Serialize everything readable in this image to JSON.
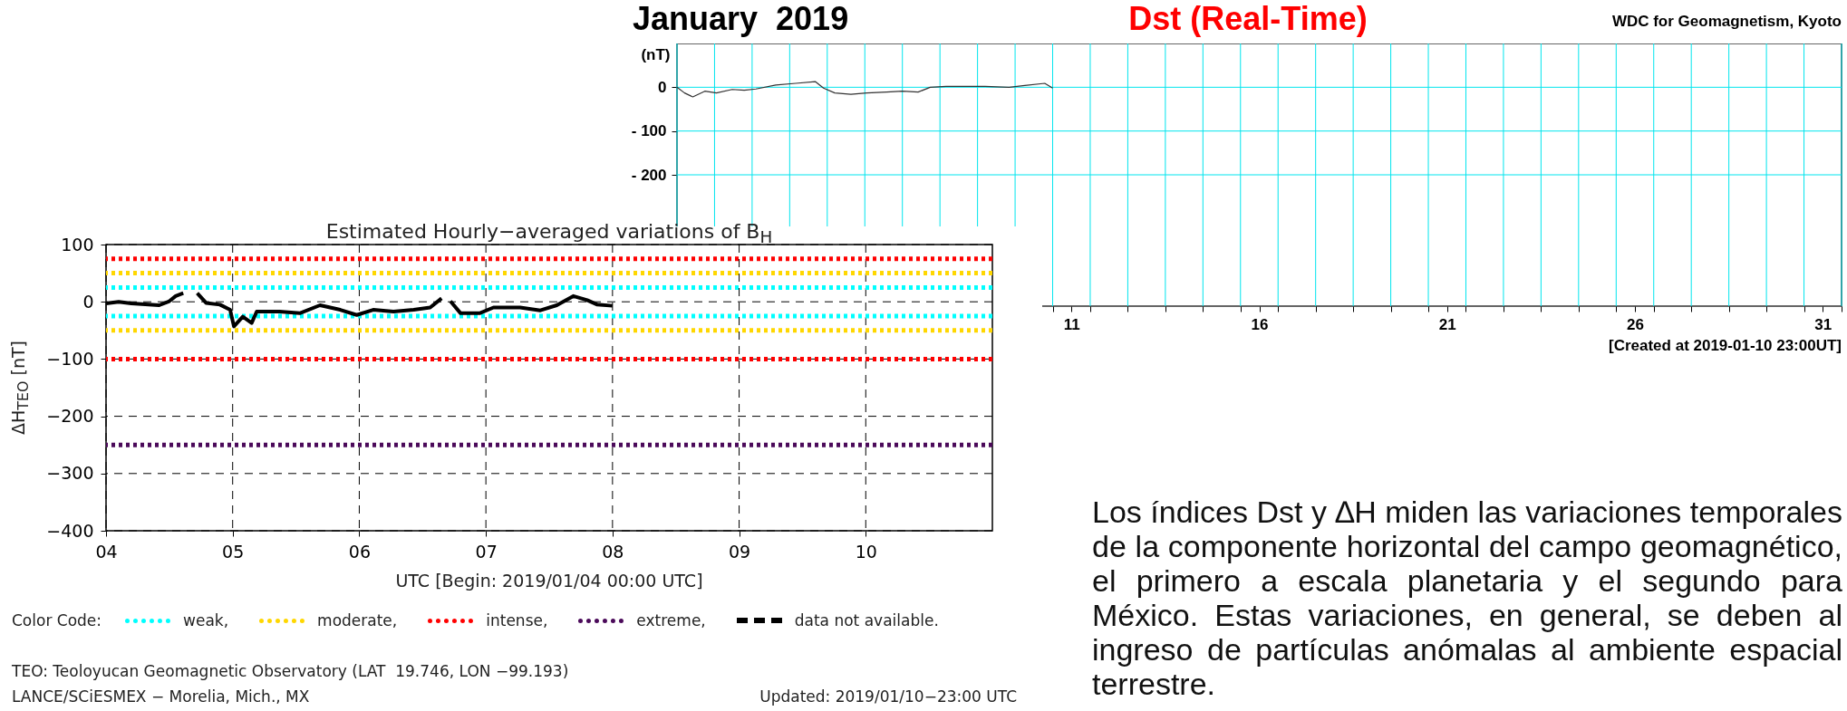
{
  "chart_data": [
    {
      "type": "line",
      "title": "Dst (Real-Time)",
      "subtitle": "January  2019",
      "ylabel": "(nT)",
      "annotations": [
        "WDC for Geomagnetism, Kyoto",
        "[Created at 2019-01-10 23:00UT]"
      ],
      "xlim": [
        1,
        32
      ],
      "xticks": [
        {
          "value": 1,
          "label": null
        },
        {
          "value": 2,
          "label": null
        },
        {
          "value": 3,
          "label": null
        },
        {
          "value": 4,
          "label": null
        },
        {
          "value": 5,
          "label": null
        },
        {
          "value": 6,
          "label": null
        },
        {
          "value": 7,
          "label": null
        },
        {
          "value": 8,
          "label": null
        },
        {
          "value": 9,
          "label": null
        },
        {
          "value": 10,
          "label": null
        },
        {
          "value": 11,
          "label": null
        },
        {
          "value": 12,
          "label": null
        },
        {
          "value": 13,
          "label": null
        },
        {
          "value": 14,
          "label": null
        },
        {
          "value": 15,
          "label": null
        },
        {
          "value": 16,
          "label": null
        },
        {
          "value": 17,
          "label": null
        },
        {
          "value": 18,
          "label": null
        },
        {
          "value": 19,
          "label": null
        },
        {
          "value": 20,
          "label": null
        },
        {
          "value": 21,
          "label": null
        },
        {
          "value": 22,
          "label": null
        },
        {
          "value": 23,
          "label": null
        },
        {
          "value": 24,
          "label": null
        },
        {
          "value": 25,
          "label": null
        },
        {
          "value": 26,
          "label": null
        },
        {
          "value": 27,
          "label": null
        },
        {
          "value": 28,
          "label": null
        },
        {
          "value": 29,
          "label": null
        },
        {
          "value": 30,
          "label": null
        },
        {
          "value": 31,
          "label": null
        },
        {
          "value": 32,
          "label": null
        },
        {
          "value": 11.5,
          "label": "11"
        },
        {
          "value": 16.5,
          "label": "16"
        },
        {
          "value": 21.5,
          "label": "21"
        },
        {
          "value": 26.5,
          "label": "26"
        },
        {
          "value": 31.5,
          "label": "31"
        }
      ],
      "ylim": [
        -500,
        100
      ],
      "yticks": [
        0,
        {
          "value": -100,
          "label": "- 100"
        },
        {
          "value": -200,
          "label": "- 200"
        }
      ],
      "grid": true,
      "x": [
        1.0,
        1.2,
        1.42,
        1.74,
        2.05,
        2.47,
        2.79,
        3.1,
        3.63,
        4.16,
        4.68,
        4.9,
        5.2,
        5.63,
        6.05,
        6.58,
        7.0,
        7.42,
        7.74,
        8.16,
        8.68,
        9.2,
        9.84,
        10.26,
        10.79,
        11.0
      ],
      "series": [
        {
          "color": "#333333",
          "values": [
            0,
            -13,
            -22,
            -9,
            -13,
            -5,
            -7,
            -4,
            5,
            9,
            13,
            -2,
            -13,
            -16,
            -13,
            -11,
            -9,
            -11,
            0,
            2,
            2,
            2,
            0,
            4,
            9,
            -2
          ]
        }
      ]
    },
    {
      "type": "line",
      "title": "Estimated Hourly−averaged variations of B$_{H}$",
      "xlabel": "UTC [Begin: 2019/01/04 00:00 UTC]",
      "ylabel": "ΔH$_{TEO}$ [nT]",
      "legend_title": "Color Code:",
      "legend": "bottom",
      "annotations": [
        "data not available.",
        "TEO: Teoloyucan Geomagnetic Observatory (LAT  19.746, LON −99.193)",
        "LANCE/SCiESMEX − Morelia, Mich., MX",
        "Updated: 2019/01/10−23:00 UTC"
      ],
      "xlim": [
        4,
        11
      ],
      "xticks": [
        {
          "value": 4,
          "label": "04"
        },
        {
          "value": 5,
          "label": "05"
        },
        {
          "value": 6,
          "label": "06"
        },
        {
          "value": 7,
          "label": "07"
        },
        {
          "value": 8,
          "label": "08"
        },
        {
          "value": 9,
          "label": "09"
        },
        {
          "value": 10,
          "label": "10"
        }
      ],
      "ylim": [
        -400,
        100
      ],
      "yticks": [
        -400,
        -300,
        -200,
        -100,
        0,
        100
      ],
      "grid": true,
      "ref_lines": [
        {
          "axis": "y",
          "value": 25,
          "label": "weak,",
          "color": "#00ffff",
          "line_style": "dotted"
        },
        {
          "axis": "y",
          "value": -25,
          "label": null,
          "color": "#00ffff",
          "line_style": "dotted"
        },
        {
          "axis": "y",
          "value": 50,
          "label": "moderate,",
          "color": "#ffd700",
          "line_style": "dotted"
        },
        {
          "axis": "y",
          "value": -50,
          "label": null,
          "color": "#ffd700",
          "line_style": "dotted"
        },
        {
          "axis": "y",
          "value": 75,
          "label": "intense,",
          "color": "#ff0000",
          "line_style": "dotted"
        },
        {
          "axis": "y",
          "value": -100,
          "label": null,
          "color": "#ff0000",
          "line_style": "dotted"
        },
        {
          "axis": "y",
          "value": -250,
          "label": "extreme,",
          "color": "#4b0a5a",
          "line_style": "dotted"
        }
      ],
      "x": [
        4.0,
        4.1,
        4.2,
        4.42,
        4.5,
        4.55,
        4.61,
        4.66,
        4.72,
        4.79,
        4.9,
        4.98,
        5.01,
        5.08,
        5.15,
        5.19,
        5.37,
        5.53,
        5.69,
        5.85,
        5.98,
        6.11,
        6.27,
        6.43,
        6.56,
        6.65,
        6.69,
        6.72,
        6.8,
        6.95,
        7.06,
        7.27,
        7.43,
        7.56,
        7.69,
        7.8,
        7.88,
        8.0
      ],
      "series": [
        {
          "color": "#000000",
          "values": [
            -3,
            0,
            -3,
            -6,
            1,
            10,
            15,
            null,
            15,
            -2,
            -5,
            -14,
            -43,
            -26,
            -37,
            -17,
            -17,
            -20,
            -6,
            -14,
            -23,
            -14,
            -17,
            -14,
            -10,
            6,
            null,
            1,
            -20,
            -20,
            -10,
            -10,
            -15,
            -6,
            10,
            3,
            -5,
            -7
          ]
        }
      ]
    },
    {
      "type": "other",
      "annotations": [
        "Los índices Dst y ∆H miden las variaciones temporales de la componente horizontal del campo geomagnético, el primero a escala planetaria y el segundo para México. Estas variaciones, en general, se deben al ingreso de partículas anómalas al ambiente espacial terrestre."
      ]
    }
  ]
}
